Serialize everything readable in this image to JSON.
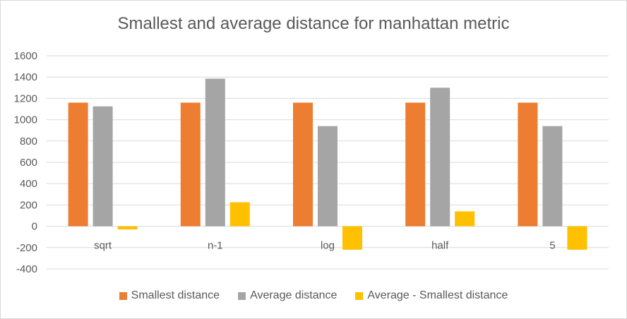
{
  "chart_data": {
    "type": "bar",
    "title": "Smallest and average distance for manhattan metric",
    "categories": [
      "sqrt",
      "n-1",
      "log",
      "half",
      "5"
    ],
    "series": [
      {
        "name": "Smallest distance",
        "color": "#ED7D31",
        "values": [
          1160,
          1160,
          1160,
          1160,
          1160
        ]
      },
      {
        "name": "Average distance",
        "color": "#A5A5A5",
        "values": [
          1125,
          1385,
          940,
          1300,
          940
        ]
      },
      {
        "name": "Average - Smallest distance",
        "color": "#FFC000",
        "values": [
          -30,
          225,
          -220,
          140,
          -220
        ]
      }
    ],
    "ylim": [
      -400,
      1600
    ],
    "yticks": [
      -400,
      -200,
      0,
      200,
      400,
      600,
      800,
      1000,
      1200,
      1400,
      1600
    ],
    "grid": true,
    "legend_position": "bottom"
  }
}
